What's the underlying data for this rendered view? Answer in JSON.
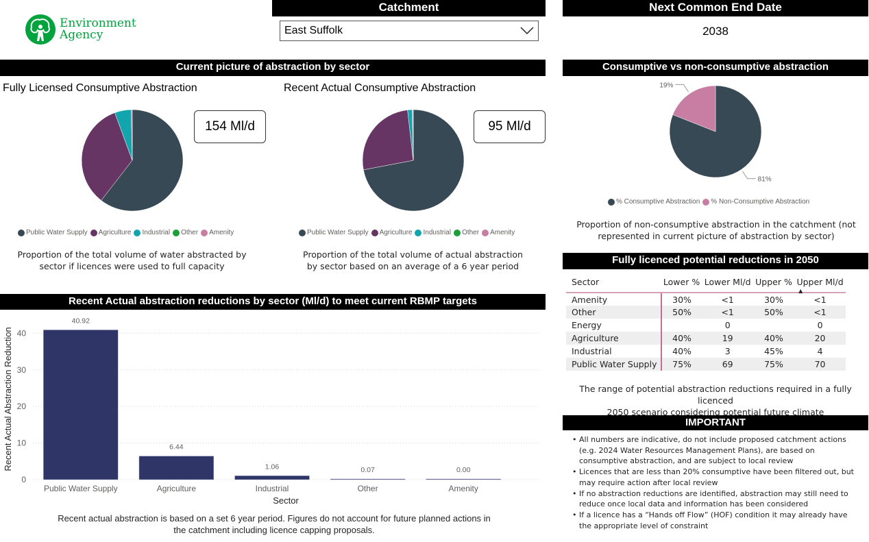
{
  "brand": {
    "logo_line1": "Environment",
    "logo_line2": "Agency",
    "color": "#00a33e"
  },
  "catchment": {
    "header": "Catchment",
    "selected": "East Suffolk"
  },
  "end_date": {
    "header": "Next Common End Date",
    "value": "2038"
  },
  "current_picture": {
    "header": "Current picture of abstraction by sector",
    "sector_colors": {
      "Public Water Supply": "#374955",
      "Agriculture": "#673563",
      "Industrial": "#12a5ad",
      "Other": "#1aa036",
      "Amenity": "#c77ea2"
    },
    "legend": [
      "Public Water Supply",
      "Agriculture",
      "Industrial",
      "Other",
      "Amenity"
    ],
    "fully_licensed": {
      "title": "Fully Licensed Consumptive Abstraction",
      "total_card": "154 Ml/d",
      "caption_line1": "Proportion of the total volume of water abstracted by",
      "caption_line2": "sector if licences were used to full capacity"
    },
    "recent_actual": {
      "title": "Recent Actual Consumptive Abstraction",
      "total_card": "95 Ml/d",
      "caption_line1": "Proportion of the total volume of actual abstraction",
      "caption_line2": "by sector based on an average of a 6 year period"
    }
  },
  "consumptive": {
    "header": "Consumptive vs non-consumptive abstraction",
    "legend": [
      {
        "label": "% Consumptive Abstraction",
        "color": "#374955"
      },
      {
        "label": "% Non-Consumptive Abstraction",
        "color": "#c77ea2"
      }
    ],
    "caption_line1": "Proportion of non-consumptive abstraction in the catchment (not",
    "caption_line2": "represented in current picture of abstraction by sector)"
  },
  "reductions_2050": {
    "header": "Fully licenced potential reductions in 2050",
    "columns": [
      "Sector",
      "Lower %",
      "Lower Ml/d",
      "Upper %",
      "Upper Ml/d"
    ],
    "sort_indicator": "▲",
    "rows": [
      [
        "Amenity",
        "30%",
        "<1",
        "30%",
        "<1"
      ],
      [
        "Other",
        "50%",
        "<1",
        "50%",
        "<1"
      ],
      [
        "Energy",
        "",
        "0",
        "",
        "0"
      ],
      [
        "Agriculture",
        "40%",
        "19",
        "40%",
        "20"
      ],
      [
        "Industrial",
        "40%",
        "3",
        "45%",
        "4"
      ],
      [
        "Public Water Supply",
        "75%",
        "69",
        "75%",
        "70"
      ]
    ],
    "caption_line1": "The range of potential abstraction reductions required in a fully licenced",
    "caption_line2": "2050 scenario considering potential future climate"
  },
  "important": {
    "header": "IMPORTANT",
    "items": [
      "All numbers are indicative, do not include proposed catchment actions (e.g. 2024 Water Resources Management Plans), are based on consumptive abstraction, and are subject to local review",
      "Licences that are less than 20% consumptive have been filtered out, but may require action after local review",
      "If no abstraction reductions are identified, abstraction may still need to reduce once local data and information has been considered",
      "If a licence has a “Hands off Flow” (HOF) condition it may already have the appropriate level of constraint"
    ]
  },
  "bar_section": {
    "header": "Recent Actual abstraction reductions by sector (Ml/d) to meet current RBMP targets",
    "caption_line1": "Recent actual abstraction is based on a set 6 year period. Figures do not account for future planned actions in",
    "caption_line2": "the catchment including licence capping proposals."
  },
  "chart_data": [
    {
      "id": "fully_licensed_pie",
      "type": "pie",
      "title": "Fully Licensed Consumptive Abstraction",
      "categories": [
        "Public Water Supply",
        "Agriculture",
        "Industrial",
        "Other",
        "Amenity"
      ],
      "values": [
        60.5,
        33.9,
        5.3,
        0.0,
        0.3
      ],
      "unit": "% (estimated)",
      "legend": "bottom"
    },
    {
      "id": "recent_actual_pie",
      "type": "pie",
      "title": "Recent Actual Consumptive Abstraction",
      "categories": [
        "Public Water Supply",
        "Agriculture",
        "Industrial",
        "Other",
        "Amenity"
      ],
      "values": [
        72.0,
        26.2,
        1.5,
        0.1,
        0.2
      ],
      "unit": "% (estimated)",
      "legend": "bottom"
    },
    {
      "id": "consumptive_pie",
      "type": "pie",
      "title": "Consumptive vs non-consumptive abstraction",
      "categories": [
        "% Consumptive Abstraction",
        "% Non-Consumptive Abstraction"
      ],
      "values": [
        81,
        19
      ],
      "data_labels": [
        "81%",
        "19%"
      ],
      "legend": "bottom"
    },
    {
      "id": "reductions_bar",
      "type": "bar",
      "title": "Recent Actual abstraction reductions by sector (Ml/d) to meet current RBMP targets",
      "categories": [
        "Public Water Supply",
        "Agriculture",
        "Industrial",
        "Other",
        "Amenity"
      ],
      "values": [
        40.92,
        6.44,
        1.06,
        0.07,
        0.0
      ],
      "data_labels": [
        "40.92",
        "6.44",
        "1.06",
        "0.07",
        "0.00"
      ],
      "xlabel": "Sector",
      "ylabel": "Recent Actual Abstraction Reduction",
      "ylim": [
        0,
        44
      ],
      "yticks": [
        0,
        10,
        20,
        30,
        40
      ],
      "grid": true,
      "color": "#2f3566"
    }
  ]
}
